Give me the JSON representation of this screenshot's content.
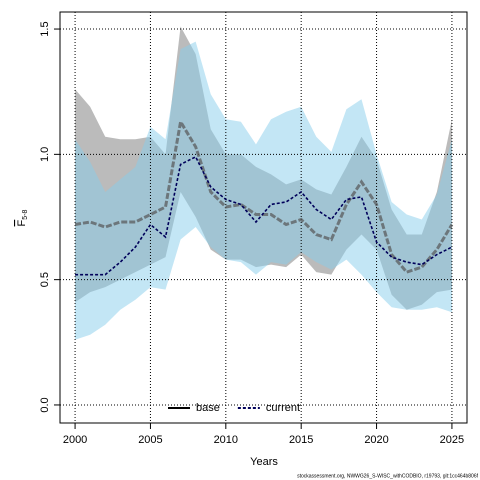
{
  "chart_data": {
    "type": "line",
    "xlabel": "Years",
    "ylabel": "F",
    "ylabel_subscript": "5-8",
    "footer": "stockassessment.org, NWWG26_S-WISC_withCODBIO, r19793, git:1cc464b806f",
    "x": [
      2000,
      2001,
      2002,
      2003,
      2004,
      2005,
      2006,
      2007,
      2008,
      2009,
      2010,
      2011,
      2012,
      2013,
      2014,
      2015,
      2016,
      2017,
      2018,
      2019,
      2020,
      2021,
      2022,
      2023,
      2024,
      2025
    ],
    "xlim": [
      1999,
      2026
    ],
    "xticks": [
      2000,
      2005,
      2010,
      2015,
      2020,
      2025
    ],
    "ylim": [
      -0.072,
      1.568
    ],
    "yticks": [
      {
        "value": 0,
        "label": "0.0"
      },
      0.5,
      {
        "value": 1,
        "label": "1.0"
      },
      1.5
    ],
    "grid": true,
    "legend": "bottom",
    "series": [
      {
        "name": "base",
        "color": "#555555",
        "legend_color": "#000000",
        "dash": "solid",
        "band_color": "rgba(120,120,120,0.5)",
        "values": [
          0.72,
          0.73,
          0.71,
          0.73,
          0.73,
          0.76,
          0.79,
          1.13,
          1.03,
          0.85,
          0.79,
          0.8,
          0.76,
          0.76,
          0.72,
          0.74,
          0.68,
          0.66,
          0.8,
          0.89,
          0.8,
          0.6,
          0.53,
          0.55,
          0.62,
          0.72
        ],
        "upper": [
          1.26,
          1.19,
          1.07,
          1.06,
          1.06,
          1.07,
          1.0,
          1.51,
          1.4,
          1.1,
          1.0,
          1.0,
          0.95,
          0.92,
          0.88,
          0.9,
          0.86,
          0.84,
          0.95,
          1.07,
          0.98,
          0.78,
          0.68,
          0.68,
          0.85,
          1.14
        ],
        "lower": [
          0.41,
          0.45,
          0.47,
          0.5,
          0.53,
          0.56,
          0.59,
          0.85,
          0.75,
          0.62,
          0.58,
          0.58,
          0.55,
          0.56,
          0.55,
          0.6,
          0.53,
          0.52,
          0.62,
          0.68,
          0.62,
          0.44,
          0.38,
          0.4,
          0.45,
          0.46
        ]
      },
      {
        "name": "current",
        "color": "#00005a",
        "legend_color": "#00005a",
        "dash": "dashed",
        "band_color": "rgba(135,206,235,0.5)",
        "values": [
          0.52,
          0.52,
          0.52,
          0.57,
          0.63,
          0.72,
          0.67,
          0.96,
          0.99,
          0.87,
          0.82,
          0.8,
          0.73,
          0.8,
          0.81,
          0.85,
          0.78,
          0.74,
          0.82,
          0.83,
          0.65,
          0.59,
          0.57,
          0.56,
          0.6,
          0.63
        ],
        "upper": [
          1.06,
          0.97,
          0.85,
          0.9,
          0.95,
          1.11,
          1.06,
          1.42,
          1.45,
          1.24,
          1.14,
          1.13,
          1.04,
          1.14,
          1.17,
          1.19,
          1.07,
          1.01,
          1.18,
          1.22,
          1.0,
          0.81,
          0.76,
          0.74,
          0.84,
          1.06
        ],
        "lower": [
          0.26,
          0.28,
          0.32,
          0.38,
          0.42,
          0.47,
          0.46,
          0.66,
          0.71,
          0.63,
          0.58,
          0.57,
          0.52,
          0.57,
          0.56,
          0.61,
          0.57,
          0.54,
          0.58,
          0.52,
          0.45,
          0.39,
          0.38,
          0.38,
          0.39,
          0.37
        ]
      }
    ]
  }
}
